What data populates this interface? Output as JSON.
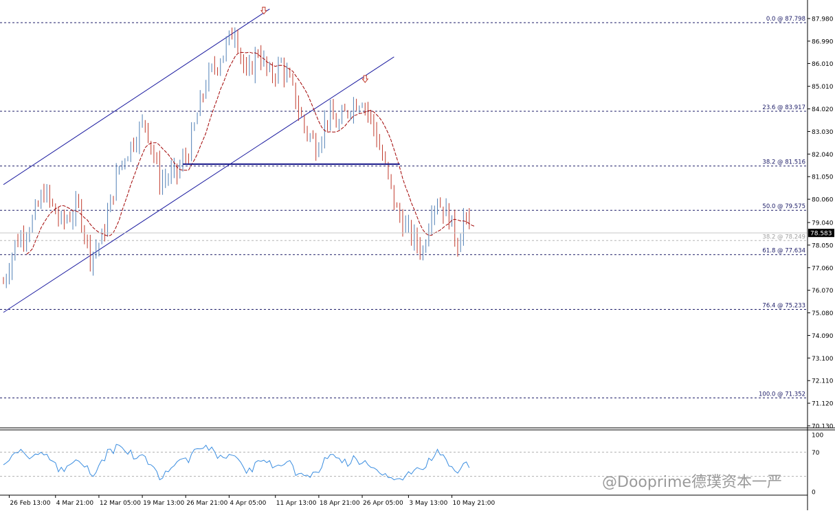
{
  "chart_data": [
    {
      "type": "candlestick",
      "title": "",
      "price_axis": {
        "ylim": [
          70.13,
          88.1
        ],
        "ticks": [
          "87.980",
          "86.990",
          "86.010",
          "85.010",
          "84.020",
          "83.030",
          "82.040",
          "81.050",
          "80.060",
          "79.040",
          "78.050",
          "77.060",
          "76.070",
          "75.080",
          "74.090",
          "73.100",
          "72.110",
          "71.120",
          "70.130"
        ],
        "tick_values": [
          87.98,
          86.99,
          86.01,
          85.01,
          84.02,
          83.03,
          82.04,
          81.05,
          80.06,
          79.04,
          78.05,
          77.06,
          76.07,
          75.08,
          74.09,
          73.1,
          72.11,
          71.12,
          70.13
        ]
      },
      "time_axis": {
        "labels": [
          "26 Feb 13:00",
          "4 Mar 21:00",
          "12 Mar 05:00",
          "19 Mar 13:00",
          "26 Mar 21:00",
          "4 Apr 05:00",
          "11 Apr 13:00",
          "18 Apr 21:00",
          "26 Apr 05:00",
          "3 May 13:00",
          "10 May 21:00"
        ],
        "label_bar_index": [
          2,
          18,
          33,
          48,
          63,
          78,
          94,
          109,
          124,
          140,
          155
        ],
        "bar_count": 165
      },
      "current_price": "78.583",
      "current_price_value": 78.583,
      "fibonacci_levels": [
        {
          "label": "0.0 @ 87.798",
          "value": 87.798
        },
        {
          "label": "23.6 @ 83.917",
          "value": 83.917
        },
        {
          "label": "38.2 @ 81.516",
          "value": 81.516
        },
        {
          "label": "50.0 @ 79.575",
          "value": 79.575
        },
        {
          "label": "38.2 @ 78.249",
          "value": 78.249,
          "faded": true
        },
        {
          "label": "61.8 @ 77.634",
          "value": 77.634
        },
        {
          "label": "76.4 @ 75.233",
          "value": 75.233
        },
        {
          "label": "100.0 @ 71.352",
          "value": 71.352
        }
      ],
      "support_line": {
        "value": 81.6,
        "from_bar": 62,
        "to_bar": 137
      },
      "channel": {
        "upper": [
          {
            "bar": 0,
            "value": 80.7
          },
          {
            "bar": 92,
            "value": 88.4
          }
        ],
        "lower": [
          {
            "bar": 0,
            "value": 75.1
          },
          {
            "bar": 135,
            "value": 86.3
          }
        ]
      },
      "arrows": [
        {
          "bar": 90,
          "value": 88.3
        },
        {
          "bar": 125,
          "value": 85.3
        }
      ],
      "moving_average_color": "#a00000",
      "candle_up_color": "#4f7fb5",
      "candle_down_color": "#c0392b",
      "fib_line_color": "#1a1a66"
    },
    {
      "type": "line",
      "indicator": "oscillator",
      "ylim": [
        0,
        100
      ],
      "ticks": [
        "100",
        "70",
        "0"
      ],
      "tick_values": [
        100,
        70,
        0
      ],
      "reference_levels": [
        70,
        30
      ],
      "line_color": "#3a8de0"
    }
  ],
  "watermark": "@Dooprime德璞资本一严"
}
